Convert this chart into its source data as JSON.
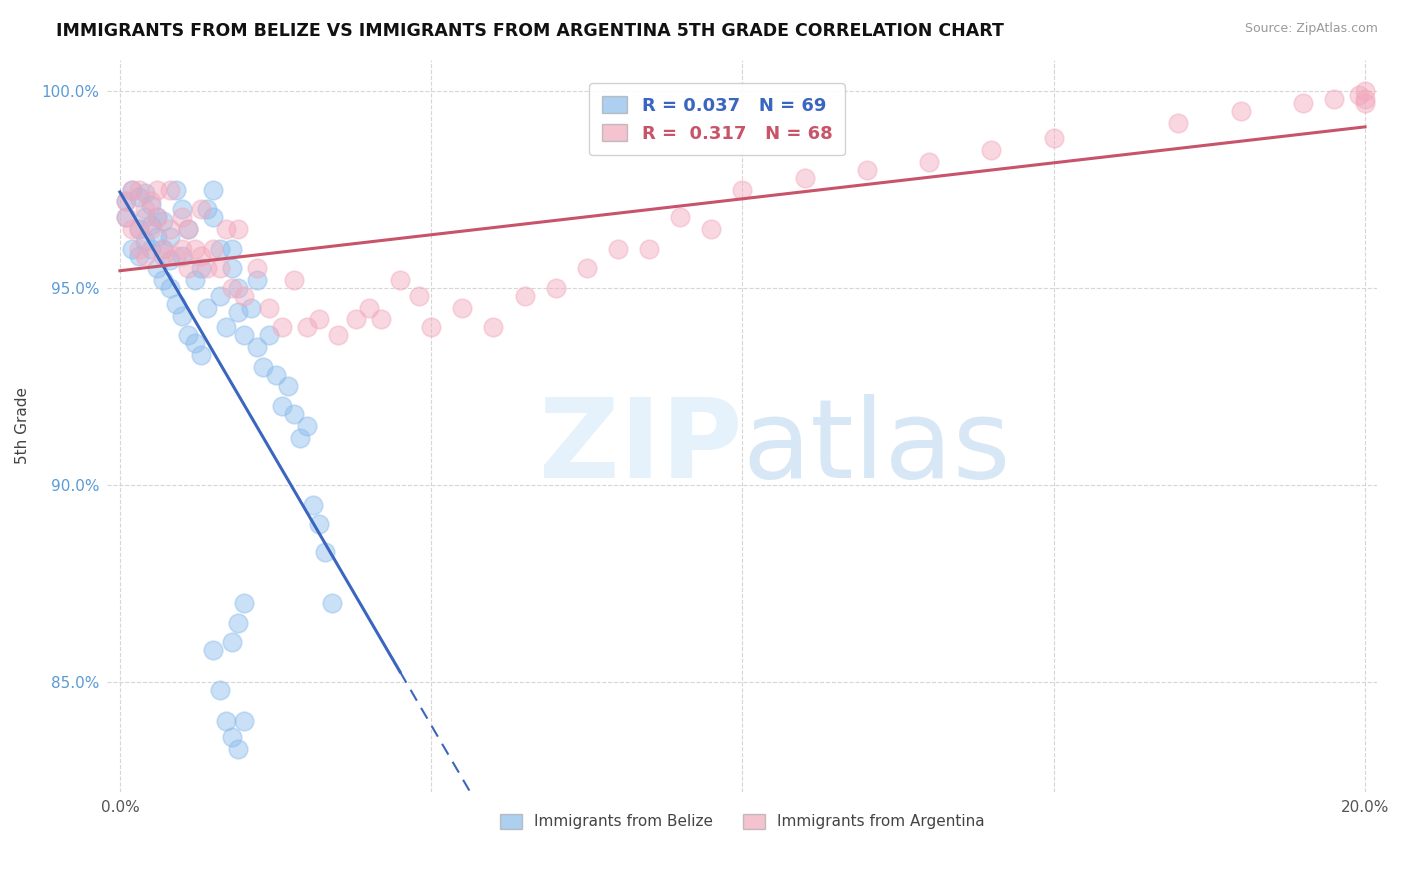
{
  "title": "IMMIGRANTS FROM BELIZE VS IMMIGRANTS FROM ARGENTINA 5TH GRADE CORRELATION CHART",
  "source": "Source: ZipAtlas.com",
  "ylabel": "5th Grade",
  "xlim": [
    -0.002,
    0.202
  ],
  "ylim": [
    0.822,
    1.008
  ],
  "xticks": [
    0.0,
    0.05,
    0.1,
    0.15,
    0.2
  ],
  "xtick_labels": [
    "0.0%",
    "",
    "",
    "",
    "20.0%"
  ],
  "yticks": [
    0.85,
    0.9,
    0.95,
    1.0
  ],
  "ytick_labels": [
    "85.0%",
    "90.0%",
    "95.0%",
    "100.0%"
  ],
  "belize_color": "#8BBCEC",
  "argentina_color": "#F2A8BC",
  "belize_line_color": "#3A66C0",
  "argentina_line_color": "#C8546A",
  "belize_R": 0.037,
  "belize_N": 69,
  "argentina_R": 0.317,
  "argentina_N": 68,
  "belize_x": [
    0.001,
    0.001,
    0.002,
    0.002,
    0.003,
    0.003,
    0.003,
    0.004,
    0.004,
    0.004,
    0.005,
    0.005,
    0.005,
    0.006,
    0.006,
    0.006,
    0.007,
    0.007,
    0.007,
    0.008,
    0.008,
    0.008,
    0.009,
    0.009,
    0.01,
    0.01,
    0.01,
    0.011,
    0.011,
    0.012,
    0.012,
    0.013,
    0.013,
    0.014,
    0.014,
    0.015,
    0.015,
    0.016,
    0.016,
    0.017,
    0.018,
    0.018,
    0.019,
    0.019,
    0.02,
    0.021,
    0.022,
    0.022,
    0.023,
    0.024,
    0.025,
    0.026,
    0.027,
    0.028,
    0.029,
    0.03,
    0.031,
    0.032,
    0.033,
    0.034,
    0.015,
    0.016,
    0.017,
    0.018,
    0.019,
    0.02,
    0.018,
    0.019,
    0.02
  ],
  "belize_y": [
    0.968,
    0.972,
    0.975,
    0.96,
    0.965,
    0.973,
    0.958,
    0.968,
    0.974,
    0.962,
    0.96,
    0.966,
    0.971,
    0.955,
    0.968,
    0.963,
    0.952,
    0.96,
    0.967,
    0.95,
    0.963,
    0.957,
    0.946,
    0.975,
    0.943,
    0.958,
    0.97,
    0.938,
    0.965,
    0.936,
    0.952,
    0.933,
    0.955,
    0.97,
    0.945,
    0.968,
    0.975,
    0.96,
    0.948,
    0.94,
    0.96,
    0.955,
    0.95,
    0.944,
    0.938,
    0.945,
    0.935,
    0.952,
    0.93,
    0.938,
    0.928,
    0.92,
    0.925,
    0.918,
    0.912,
    0.915,
    0.895,
    0.89,
    0.883,
    0.87,
    0.858,
    0.848,
    0.84,
    0.836,
    0.833,
    0.84,
    0.86,
    0.865,
    0.87
  ],
  "argentina_x": [
    0.001,
    0.001,
    0.002,
    0.002,
    0.003,
    0.003,
    0.003,
    0.004,
    0.004,
    0.005,
    0.005,
    0.006,
    0.006,
    0.007,
    0.007,
    0.008,
    0.008,
    0.009,
    0.01,
    0.01,
    0.011,
    0.011,
    0.012,
    0.013,
    0.013,
    0.014,
    0.015,
    0.016,
    0.017,
    0.018,
    0.019,
    0.02,
    0.022,
    0.024,
    0.026,
    0.028,
    0.03,
    0.032,
    0.035,
    0.038,
    0.04,
    0.042,
    0.045,
    0.048,
    0.05,
    0.055,
    0.06,
    0.065,
    0.07,
    0.075,
    0.08,
    0.085,
    0.09,
    0.095,
    0.1,
    0.11,
    0.12,
    0.13,
    0.14,
    0.15,
    0.17,
    0.18,
    0.19,
    0.195,
    0.199,
    0.2,
    0.2,
    0.2
  ],
  "argentina_y": [
    0.972,
    0.968,
    0.975,
    0.965,
    0.975,
    0.96,
    0.965,
    0.97,
    0.958,
    0.972,
    0.965,
    0.968,
    0.975,
    0.958,
    0.96,
    0.965,
    0.975,
    0.958,
    0.96,
    0.968,
    0.955,
    0.965,
    0.96,
    0.958,
    0.97,
    0.955,
    0.96,
    0.955,
    0.965,
    0.95,
    0.965,
    0.948,
    0.955,
    0.945,
    0.94,
    0.952,
    0.94,
    0.942,
    0.938,
    0.942,
    0.945,
    0.942,
    0.952,
    0.948,
    0.94,
    0.945,
    0.94,
    0.948,
    0.95,
    0.955,
    0.96,
    0.96,
    0.968,
    0.965,
    0.975,
    0.978,
    0.98,
    0.982,
    0.985,
    0.988,
    0.992,
    0.995,
    0.997,
    0.998,
    0.999,
    1.0,
    0.997,
    0.998
  ]
}
